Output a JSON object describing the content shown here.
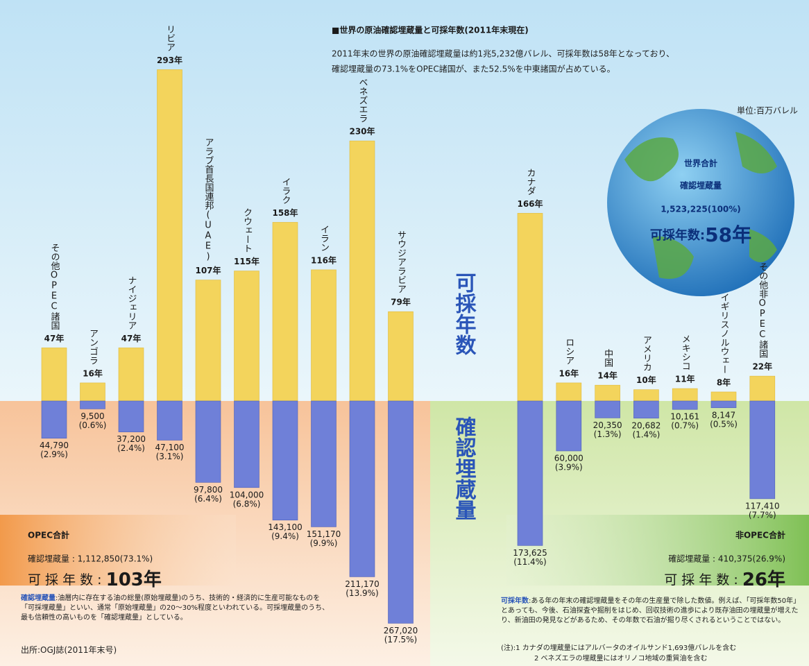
{
  "chart_data": {
    "type": "bar",
    "title": "■世界の原油確認埋蔵量と可採年数(2011年末現在)",
    "subtitle": [
      "2011年末の世界の原油確認埋蔵量は約1兆5,232億バレル、可採年数は58年となっており、",
      "確認埋蔵量の73.1%をOPEC諸国が、また52.5%を中東諸国が占めている。"
    ],
    "unit": "単位:百万バレル",
    "categories": [
      "その他OPEC諸国",
      "アンゴラ",
      "ナイジェリア",
      "リビア",
      "アラブ首長国連邦(UAE)",
      "クウェート",
      "イラク",
      "イラン",
      "ベネズエラ",
      "サウジアラビア",
      "カナダ",
      "ロシア",
      "中国",
      "アメリカ",
      "メキシコ",
      "イギリスノルウェー",
      "その他非OPEC諸国"
    ],
    "series": [
      {
        "name": "可採年数",
        "color": "#f3d45c",
        "values": [
          47,
          16,
          47,
          293,
          107,
          115,
          158,
          116,
          230,
          79,
          166,
          16,
          14,
          10,
          11,
          8,
          22
        ],
        "value_labels": [
          "47年",
          "16年",
          "47年",
          "293年",
          "107年",
          "115年",
          "158年",
          "116年",
          "230年",
          "79年",
          "166年",
          "16年",
          "14年",
          "10年",
          "11年",
          "8年",
          "22年"
        ]
      },
      {
        "name": "確認埋蔵量",
        "color": "#6f80d8",
        "values": [
          44790,
          9500,
          37200,
          47100,
          97800,
          104000,
          143100,
          151170,
          211170,
          267020,
          173625,
          60000,
          20350,
          20682,
          10161,
          8147,
          117410
        ],
        "value_labels": [
          "44,790",
          "9,500",
          "37,200",
          "47,100",
          "97,800",
          "104,000",
          "143,100",
          "151,170",
          "211,170",
          "267,020",
          "173,625",
          "60,000",
          "20,350",
          "20,682",
          "10,161",
          "8,147",
          "117,410"
        ]
      },
      {
        "values": [
          2.9,
          0.6,
          2.4,
          3.1,
          6.4,
          6.8,
          9.4,
          9.9,
          13.9,
          17.5,
          11.4,
          3.9,
          1.3,
          1.4,
          0.7,
          0.5,
          7.7
        ],
        "value_labels": [
          "(2.9%)",
          "(0.6%)",
          "(2.4%)",
          "(3.1%)",
          "(6.4%)",
          "(6.8%)",
          "(9.4%)",
          "(9.9%)",
          "(13.9%)",
          "(17.5%)",
          "(11.4%)",
          "(3.9%)",
          "(1.3%)",
          "(1.4%)",
          "(0.7%)",
          "(0.5%)",
          "(7.7%)"
        ]
      }
    ]
  },
  "world_total": {
    "title": "世界合計",
    "reserves_label": "確認埋蔵量",
    "reserves": "1,523,225(100%)",
    "years_label": "可採年数:",
    "years": "58年"
  },
  "opec_total": {
    "title": "OPEC合計",
    "reserves": "確認埋蔵量 : 1,112,850(73.1%)",
    "years_label": "可 採 年 数 : ",
    "years": "103年"
  },
  "non_opec_total": {
    "title": "非OPEC合計",
    "reserves": "確認埋蔵量 : 410,375(26.9%)",
    "years_label": "可 採 年 数 : ",
    "years": "26年"
  },
  "notes": {
    "reserves_term": "確認埋蔵量",
    "reserves_text": ":油層内に存在する油の総量(原始埋蔵量)のうち、技術的・経済的に生産可能なものを「可採埋蔵量」といい、通常「原始埋蔵量」の20～30%程度といわれている。可採埋蔵量のうち、最も信頼性の高いものを「確認埋蔵量」としている。",
    "years_term": "可採年数",
    "years_text": ":ある年の年末の確認埋蔵量をその年の生産量で除した数値。例えば、「可採年数50年」とあっても、今後、石油探査や掘削をはじめ、回収技術の進歩により既存油田の埋蔵量が増えたり、新油田の発見などがあるため、その年数で石油が掘り尽くされるということではない。",
    "note1": "(注):1 カナダの埋蔵量にはアルバータのオイルサンド1,693億バレルを含む",
    "note2": "2 ベネズエラの埋蔵量にはオリノコ地域の重質油を含む",
    "source": "出所:OGJ誌(2011年末号)"
  }
}
